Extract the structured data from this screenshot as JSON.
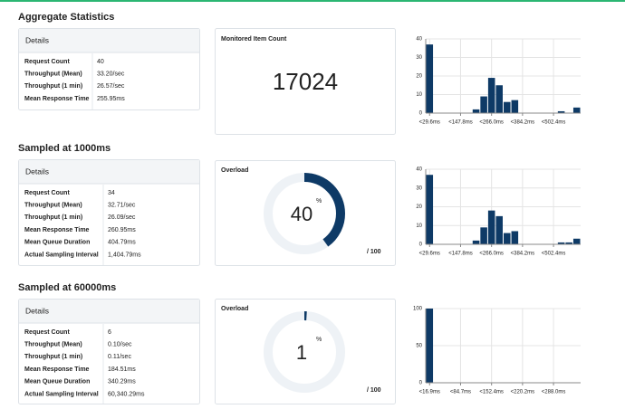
{
  "sections": [
    {
      "title": "Aggregate Statistics",
      "details": {
        "header": "Details",
        "rows": [
          [
            "Request Count",
            "40"
          ],
          [
            "Throughput (Mean)",
            "33.20/sec"
          ],
          [
            "Throughput (1 min)",
            "26.57/sec"
          ],
          [
            "Mean Response Time",
            "255.95ms"
          ]
        ]
      },
      "metric": {
        "label": "Monitored Item Count",
        "value": 17024
      },
      "chart_data": {
        "type": "bar",
        "color": "#0e3a66",
        "categories": [
          "<29.6ms",
          null,
          null,
          null,
          "<147.8ms",
          null,
          null,
          null,
          "<266.0ms",
          null,
          null,
          null,
          "<384.2ms",
          null,
          null,
          null,
          "<502.4ms",
          null,
          null,
          null
        ],
        "values": [
          37,
          0,
          0,
          0,
          0,
          0,
          2,
          9,
          19,
          15,
          6,
          7,
          0,
          0,
          0,
          0,
          0,
          1,
          0,
          3
        ],
        "ylim": [
          0,
          40
        ],
        "yticks": [
          0,
          10,
          20,
          30,
          40
        ],
        "grid": true
      }
    },
    {
      "title": "Sampled at 1000ms",
      "details": {
        "header": "Details",
        "rows": [
          [
            "Request Count",
            "34"
          ],
          [
            "Throughput (Mean)",
            "32.71/sec"
          ],
          [
            "Throughput (1 min)",
            "26.09/sec"
          ],
          [
            "Mean Response Time",
            "260.95ms"
          ],
          [
            "Mean Queue Duration",
            "404.79ms"
          ],
          [
            "Actual Sampling Interval",
            "1,404.79ms"
          ]
        ]
      },
      "gauge": {
        "label": "Overload",
        "value": 40,
        "unit": "%",
        "max": {
          "value": 100,
          "label": "/ 100"
        }
      },
      "chart_data": {
        "type": "bar",
        "color": "#0e3a66",
        "categories": [
          "<29.6ms",
          null,
          null,
          null,
          "<147.8ms",
          null,
          null,
          null,
          "<266.0ms",
          null,
          null,
          null,
          "<384.2ms",
          null,
          null,
          null,
          "<502.4ms",
          null,
          null,
          null
        ],
        "values": [
          37,
          0,
          0,
          0,
          0,
          0,
          2,
          9,
          18,
          15,
          6,
          7,
          0,
          0,
          0,
          0,
          0,
          1,
          1,
          3
        ],
        "ylim": [
          0,
          40
        ],
        "yticks": [
          0,
          10,
          20,
          30,
          40
        ],
        "grid": true
      }
    },
    {
      "title": "Sampled at 60000ms",
      "details": {
        "header": "Details",
        "rows": [
          [
            "Request Count",
            "6"
          ],
          [
            "Throughput (Mean)",
            "0.10/sec"
          ],
          [
            "Throughput (1 min)",
            "0.11/sec"
          ],
          [
            "Mean Response Time",
            "184.51ms"
          ],
          [
            "Mean Queue Duration",
            "340.29ms"
          ],
          [
            "Actual Sampling Interval",
            "60,340.29ms"
          ]
        ]
      },
      "gauge": {
        "label": "Overload",
        "value": 1,
        "unit": "%",
        "max": {
          "value": 100,
          "label": "/ 100"
        }
      },
      "chart_data": {
        "type": "bar",
        "color": "#0e3a66",
        "categories": [
          "<16.9ms",
          null,
          null,
          null,
          "<84.7ms",
          null,
          null,
          null,
          "<152.4ms",
          null,
          null,
          null,
          "<220.2ms",
          null,
          null,
          null,
          "<288.0ms",
          null,
          null,
          null
        ],
        "values": [
          100,
          0,
          0,
          0,
          0,
          0,
          0,
          0,
          0,
          0,
          0,
          0,
          0,
          0,
          0,
          0,
          0,
          0,
          0,
          0
        ],
        "ylim": [
          0,
          100
        ],
        "yticks": [
          0,
          50,
          100
        ],
        "grid": true
      }
    }
  ]
}
